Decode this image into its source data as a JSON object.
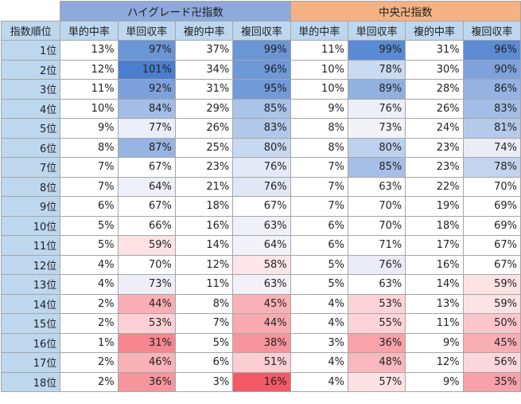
{
  "groups": [
    "ハイグレード卍指数",
    "中央卍指数"
  ],
  "columns": [
    "指数順位",
    "単的中率",
    "単回収率",
    "複的中率",
    "複回収率",
    "単的中率",
    "単回収率",
    "複的中率",
    "複回収率"
  ],
  "rows": [
    {
      "rank": "1位",
      "cells": [
        "13%",
        "97%",
        "37%",
        "99%",
        "11%",
        "99%",
        "31%",
        "96%"
      ]
    },
    {
      "rank": "2位",
      "cells": [
        "12%",
        "101%",
        "34%",
        "96%",
        "10%",
        "78%",
        "30%",
        "90%"
      ]
    },
    {
      "rank": "3位",
      "cells": [
        "11%",
        "92%",
        "31%",
        "95%",
        "10%",
        "89%",
        "28%",
        "86%"
      ]
    },
    {
      "rank": "4位",
      "cells": [
        "10%",
        "84%",
        "29%",
        "85%",
        "9%",
        "76%",
        "26%",
        "83%"
      ]
    },
    {
      "rank": "5位",
      "cells": [
        "9%",
        "77%",
        "26%",
        "83%",
        "8%",
        "73%",
        "24%",
        "81%"
      ]
    },
    {
      "rank": "6位",
      "cells": [
        "8%",
        "87%",
        "25%",
        "80%",
        "8%",
        "80%",
        "23%",
        "74%"
      ]
    },
    {
      "rank": "7位",
      "cells": [
        "7%",
        "67%",
        "23%",
        "76%",
        "7%",
        "85%",
        "23%",
        "78%"
      ]
    },
    {
      "rank": "8位",
      "cells": [
        "7%",
        "64%",
        "21%",
        "76%",
        "7%",
        "63%",
        "22%",
        "70%"
      ]
    },
    {
      "rank": "9位",
      "cells": [
        "6%",
        "67%",
        "18%",
        "67%",
        "7%",
        "70%",
        "19%",
        "69%"
      ]
    },
    {
      "rank": "10位",
      "cells": [
        "5%",
        "66%",
        "16%",
        "63%",
        "6%",
        "70%",
        "18%",
        "69%"
      ]
    },
    {
      "rank": "11位",
      "cells": [
        "5%",
        "59%",
        "14%",
        "64%",
        "6%",
        "71%",
        "17%",
        "67%"
      ]
    },
    {
      "rank": "12位",
      "cells": [
        "4%",
        "70%",
        "12%",
        "58%",
        "5%",
        "76%",
        "16%",
        "67%"
      ]
    },
    {
      "rank": "13位",
      "cells": [
        "4%",
        "73%",
        "11%",
        "63%",
        "5%",
        "63%",
        "14%",
        "59%"
      ]
    },
    {
      "rank": "14位",
      "cells": [
        "2%",
        "44%",
        "8%",
        "45%",
        "4%",
        "53%",
        "13%",
        "59%"
      ]
    },
    {
      "rank": "15位",
      "cells": [
        "2%",
        "53%",
        "7%",
        "44%",
        "4%",
        "55%",
        "11%",
        "50%"
      ]
    },
    {
      "rank": "16位",
      "cells": [
        "1%",
        "31%",
        "5%",
        "38%",
        "3%",
        "36%",
        "9%",
        "45%"
      ]
    },
    {
      "rank": "17位",
      "cells": [
        "2%",
        "46%",
        "6%",
        "51%",
        "4%",
        "48%",
        "12%",
        "56%"
      ]
    },
    {
      "rank": "18位",
      "cells": [
        "2%",
        "36%",
        "3%",
        "16%",
        "4%",
        "57%",
        "9%",
        "35%"
      ]
    }
  ],
  "cell_colors": [
    [
      "#ffffff",
      "#6b96d6",
      "#ffffff",
      "#6b96d6",
      "#ffffff",
      "#5a8ad4",
      "#ffffff",
      "#5c8bd4"
    ],
    [
      "#ffffff",
      "#4a7fd0",
      "#ffffff",
      "#6e98d7",
      "#ffffff",
      "#c9daf1",
      "#ffffff",
      "#7ea3dc"
    ],
    [
      "#ffffff",
      "#7da1dc",
      "#ffffff",
      "#719ad8",
      "#ffffff",
      "#91b1e1",
      "#ffffff",
      "#94b3e2"
    ],
    [
      "#ffffff",
      "#a3bde6",
      "#ffffff",
      "#aac3e9",
      "#ffffff",
      "#eceff8",
      "#ffffff",
      "#a3bde6"
    ],
    [
      "#ffffff",
      "#ebeef8",
      "#ffffff",
      "#b2c8ea",
      "#ffffff",
      "#f2f2f9",
      "#ffffff",
      "#b4caeb"
    ],
    [
      "#ffffff",
      "#97b4e3",
      "#ffffff",
      "#c7d8f1",
      "#ffffff",
      "#bdd0ee",
      "#ffffff",
      "#ebecf7"
    ],
    [
      "#ffffff",
      "#ffffff",
      "#ffffff",
      "#e3e9f6",
      "#ffffff",
      "#a6bfe7",
      "#ffffff",
      "#c2d4ef"
    ],
    [
      "#ffffff",
      "#eeeff8",
      "#ffffff",
      "#e1e7f5",
      "#ffffff",
      "#ffffff",
      "#ffffff",
      "#ffffff"
    ],
    [
      "#ffffff",
      "#ffffff",
      "#ffffff",
      "#ffffff",
      "#ffffff",
      "#ffffff",
      "#ffffff",
      "#ffffff"
    ],
    [
      "#ffffff",
      "#ffffff",
      "#ffffff",
      "#f0f0f9",
      "#ffffff",
      "#ffffff",
      "#ffffff",
      "#ffffff"
    ],
    [
      "#ffffff",
      "#fce2e5",
      "#ffffff",
      "#f3f2fa",
      "#ffffff",
      "#ffffff",
      "#ffffff",
      "#ffffff"
    ],
    [
      "#ffffff",
      "#ffffff",
      "#ffffff",
      "#fde5e8",
      "#ffffff",
      "#ebecf7",
      "#ffffff",
      "#ffffff"
    ],
    [
      "#ffffff",
      "#edeef8",
      "#ffffff",
      "#f2f1f9",
      "#ffffff",
      "#ffffff",
      "#ffffff",
      "#fde2e5"
    ],
    [
      "#ffffff",
      "#f9aeb5",
      "#ffffff",
      "#f9b1b7",
      "#ffffff",
      "#fcd4d8",
      "#ffffff",
      "#fde2e5"
    ],
    [
      "#ffffff",
      "#fcd0d4",
      "#ffffff",
      "#f8aab0",
      "#ffffff",
      "#fcd4d8",
      "#ffffff",
      "#fbc6cb"
    ],
    [
      "#ffffff",
      "#f6868f",
      "#ffffff",
      "#f6959d",
      "#ffffff",
      "#f8a2a9",
      "#ffffff",
      "#f9aeb4"
    ],
    [
      "#ffffff",
      "#f9b2b8",
      "#ffffff",
      "#fcced2",
      "#ffffff",
      "#f9b8bd",
      "#ffffff",
      "#fcd6da"
    ],
    [
      "#ffffff",
      "#f7959d",
      "#ffffff",
      "#f45a66",
      "#ffffff",
      "#fde1e4",
      "#ffffff",
      "#f8a1a8"
    ]
  ]
}
